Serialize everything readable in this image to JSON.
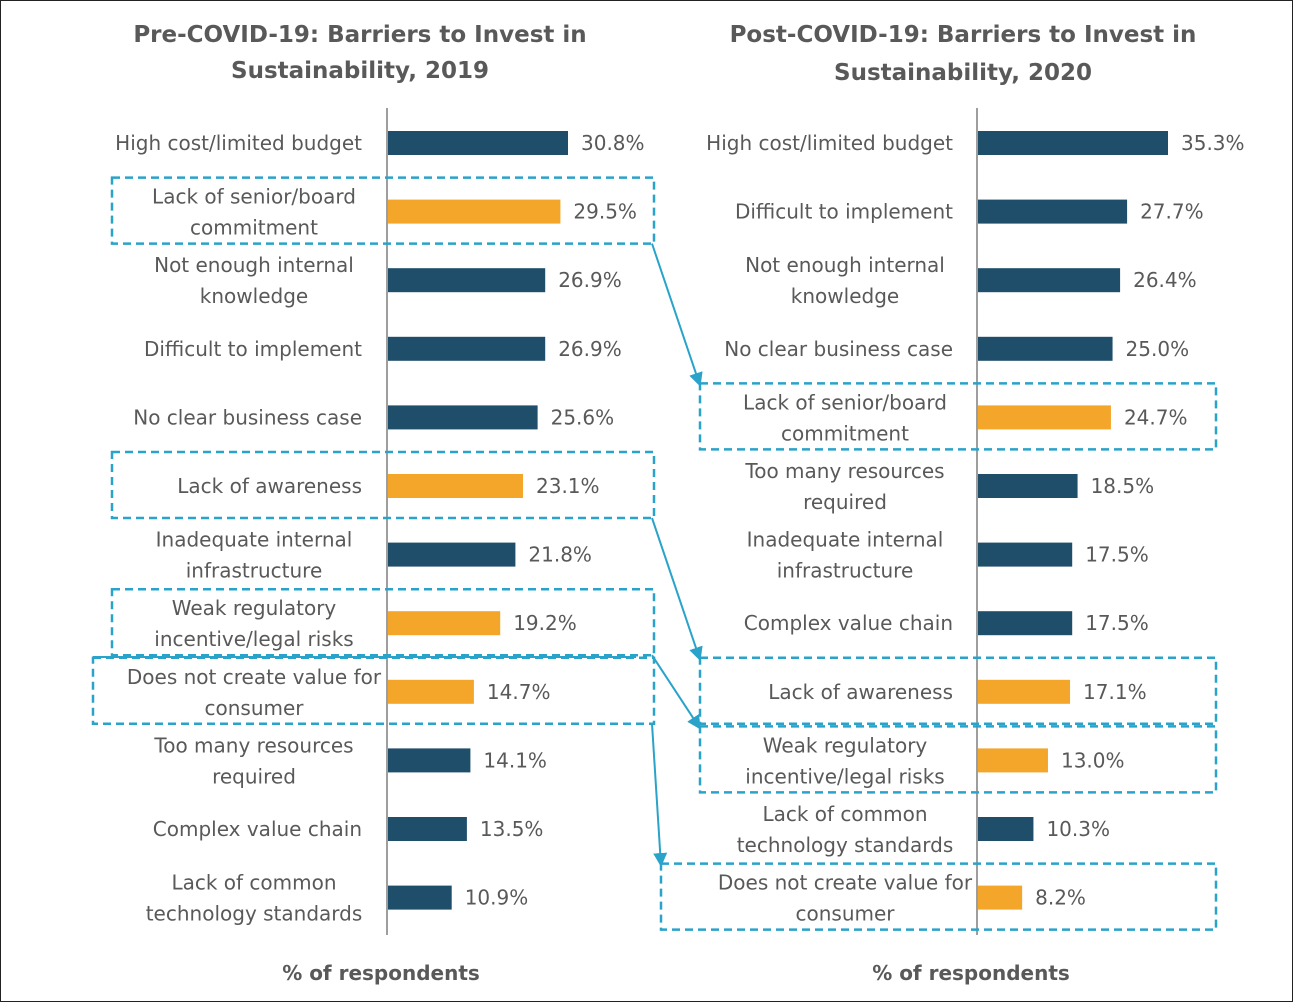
{
  "colors": {
    "bar_default": "#1f4e6b",
    "bar_highlight": "#f4a62a",
    "highlight_box": "#29a3c9",
    "axis": "#7f7f7f",
    "text": "#595959"
  },
  "chart_data": [
    {
      "type": "bar",
      "orientation": "horizontal",
      "title_lines": [
        "Pre-COVID-19: Barriers to Invest in",
        "Sustainability, 2019"
      ],
      "xlabel": "% of respondents",
      "unit": "%",
      "categories": [
        [
          "High cost/limited budget"
        ],
        [
          "Lack of  senior/board",
          "commitment"
        ],
        [
          "Not enough internal",
          "knowledge"
        ],
        [
          "Difficult to implement"
        ],
        [
          "No clear business case"
        ],
        [
          "Lack of awareness"
        ],
        [
          "Inadequate internal",
          "infrastructure"
        ],
        [
          "Weak regulatory",
          "incentive/legal risks"
        ],
        [
          "Does not create value for",
          "consumer"
        ],
        [
          "Too many resources",
          "required"
        ],
        [
          "Complex value chain"
        ],
        [
          "Lack of common",
          "technology standards"
        ]
      ],
      "values": [
        30.8,
        29.5,
        26.9,
        26.9,
        25.6,
        23.1,
        21.8,
        19.2,
        14.7,
        14.1,
        13.5,
        10.9
      ],
      "value_labels": [
        "30.8%",
        "29.5%",
        "26.9%",
        "26.9%",
        "25.6%",
        "23.1%",
        "21.8%",
        "19.2%",
        "14.7%",
        "14.1%",
        "13.5%",
        "10.9%"
      ],
      "highlighted": [
        false,
        true,
        false,
        false,
        false,
        true,
        false,
        true,
        true,
        false,
        false,
        false
      ]
    },
    {
      "type": "bar",
      "orientation": "horizontal",
      "title_lines": [
        "Post-COVID-19: Barriers to Invest in",
        "Sustainability, 2020"
      ],
      "xlabel": "% of respondents",
      "unit": "%",
      "categories": [
        [
          "High cost/limited budget"
        ],
        [
          "Difficult to implement"
        ],
        [
          "Not enough internal",
          "knowledge"
        ],
        [
          "No clear business case"
        ],
        [
          "Lack of  senior/board",
          "commitment"
        ],
        [
          "Too many resources",
          "required"
        ],
        [
          "Inadequate internal",
          "infrastructure"
        ],
        [
          "Complex value chain"
        ],
        [
          "Lack of awareness"
        ],
        [
          "Weak regulatory",
          "incentive/legal risks"
        ],
        [
          "Lack of common",
          "technology standards"
        ],
        [
          "Does not create value for",
          "consumer"
        ]
      ],
      "values": [
        35.3,
        27.7,
        26.4,
        25.0,
        24.7,
        18.5,
        17.5,
        17.5,
        17.1,
        13.0,
        10.3,
        8.2
      ],
      "value_labels": [
        "35.3%",
        "27.7%",
        "26.4%",
        "25.0%",
        "24.7%",
        "18.5%",
        "17.5%",
        "17.5%",
        "17.1%",
        "13.0%",
        "10.3%",
        "8.2%"
      ],
      "highlighted": [
        false,
        false,
        false,
        false,
        true,
        false,
        false,
        false,
        true,
        true,
        false,
        true
      ]
    }
  ],
  "links": [
    {
      "from": 1,
      "to": 4
    },
    {
      "from": 5,
      "to": 8
    },
    {
      "from": 7,
      "to": 9
    },
    {
      "from": 8,
      "to": 11
    }
  ]
}
